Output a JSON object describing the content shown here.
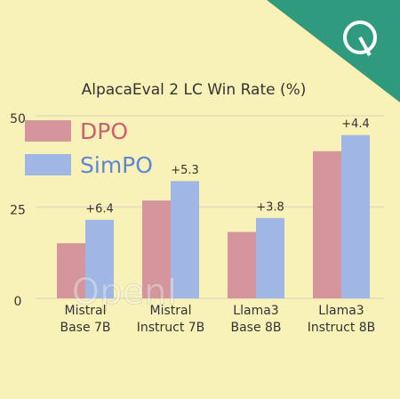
{
  "chart_data": {
    "type": "grouped_bar",
    "title": "AlpacaEval 2 LC Win Rate (%)",
    "categories": [
      [
        "Mistral",
        "Base 7B"
      ],
      [
        "Mistral",
        "Instruct 7B"
      ],
      [
        "Llama3",
        "Base 8B"
      ],
      [
        "Llama3",
        "Instruct 8B"
      ]
    ],
    "series": [
      {
        "name": "DPO",
        "color": "#d4959d",
        "values": [
          15.1,
          26.8,
          18.2,
          40.3
        ]
      },
      {
        "name": "SimPO",
        "color": "#a0b6e4",
        "values": [
          21.5,
          32.1,
          22.0,
          44.7
        ]
      }
    ],
    "annotations": [
      "+6.4",
      "+5.3",
      "+3.8",
      "+4.4"
    ],
    "ylim": [
      0,
      50
    ],
    "yticks": [
      0,
      25,
      50
    ],
    "grid": true,
    "legend": "upper left",
    "watermark": "OpenI"
  }
}
